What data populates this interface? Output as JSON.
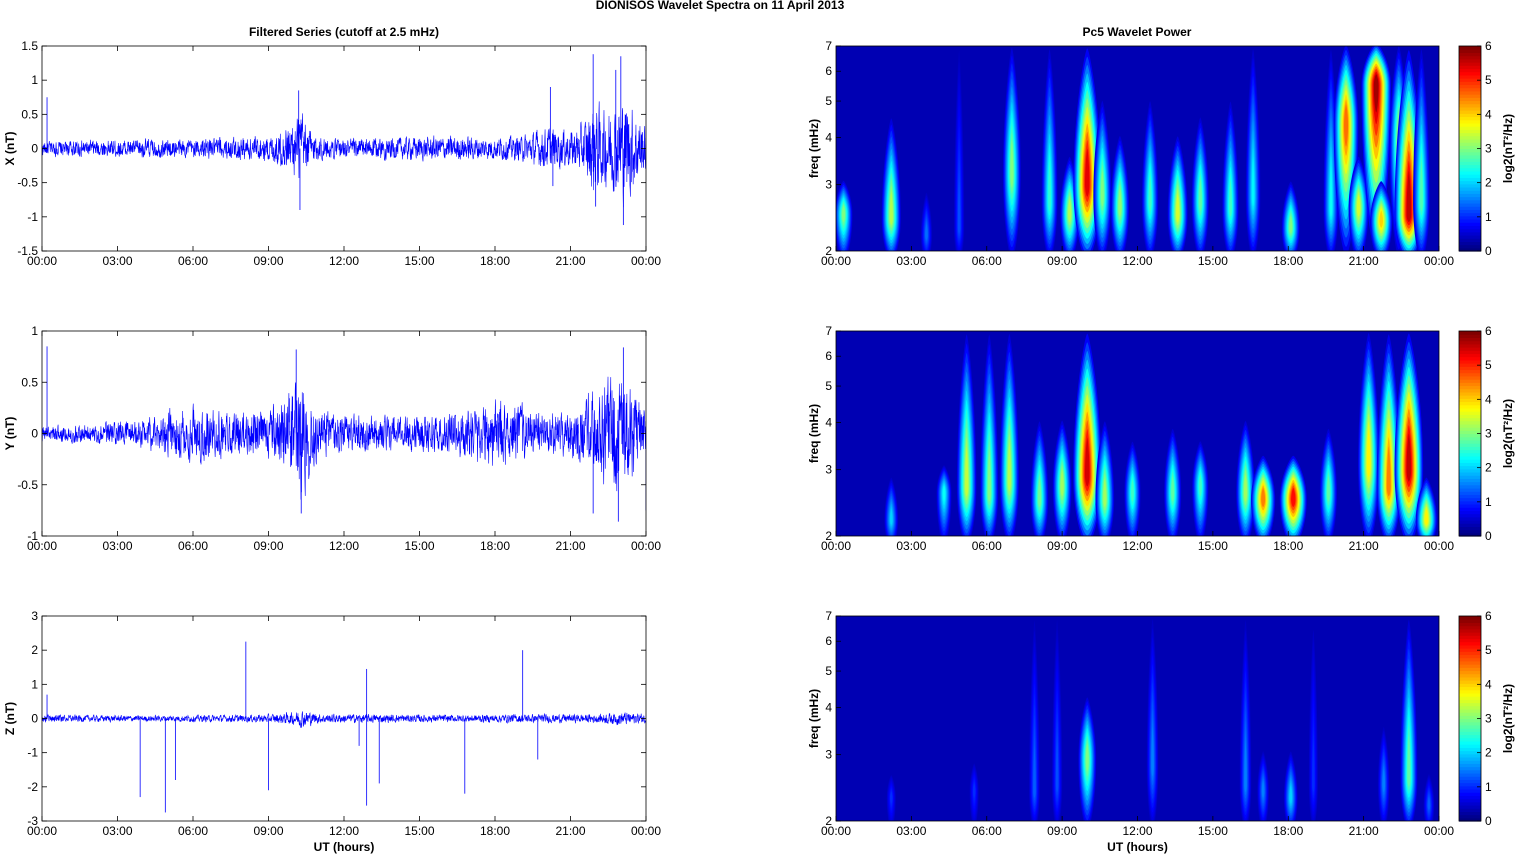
{
  "figure": {
    "title": "DIONISOS Wavelet Spectra on 11 April     2013",
    "left_column_title": "Filtered Series (cutoff at 2.5 mHz)",
    "right_column_title": "Pc5 Wavelet Power",
    "colors": {
      "trace": "#0000ff",
      "background": "#ffffff",
      "axes": "#000000"
    }
  },
  "chart_data": [
    {
      "type": "line",
      "component": "X",
      "ylabel": "X (nT)",
      "xlabel": "",
      "x_tick_labels": [
        "00:00",
        "03:00",
        "06:00",
        "09:00",
        "12:00",
        "15:00",
        "18:00",
        "21:00",
        "00:00"
      ],
      "xlim_hours": [
        0,
        24
      ],
      "ylim": [
        -1.5,
        1.5
      ],
      "y_ticks": [
        -1.5,
        -1,
        -0.5,
        0,
        0.5,
        1,
        1.5
      ],
      "y_tick_labels": [
        "-1.5",
        "-1",
        "-0.5",
        "0",
        "0.5",
        "1",
        "1.5"
      ],
      "grid": false,
      "envelope_hours": [
        0,
        2,
        4,
        6,
        7,
        8,
        9,
        9.5,
        10,
        10.3,
        10.6,
        11,
        12,
        14,
        16,
        18,
        19,
        19.8,
        20.2,
        21,
        21.5,
        21.9,
        22.3,
        22.8,
        23.2,
        23.6,
        24
      ],
      "envelope_amplitude": [
        0.12,
        0.14,
        0.15,
        0.15,
        0.18,
        0.2,
        0.22,
        0.3,
        0.45,
        0.6,
        0.35,
        0.2,
        0.16,
        0.18,
        0.2,
        0.18,
        0.2,
        0.3,
        0.35,
        0.3,
        0.4,
        0.8,
        0.6,
        0.7,
        0.9,
        0.6,
        0.4
      ],
      "spikes": [
        {
          "t_hours": 0.2,
          "value": 0.75
        },
        {
          "t_hours": 10.2,
          "value": 0.85
        },
        {
          "t_hours": 10.25,
          "value": -0.9
        },
        {
          "t_hours": 20.2,
          "value": 0.9
        },
        {
          "t_hours": 20.3,
          "value": -0.55
        },
        {
          "t_hours": 21.9,
          "value": 1.38
        },
        {
          "t_hours": 22.0,
          "value": -0.85
        },
        {
          "t_hours": 22.8,
          "value": 1.15
        },
        {
          "t_hours": 23.0,
          "value": 1.35
        },
        {
          "t_hours": 23.1,
          "value": -1.12
        }
      ]
    },
    {
      "type": "line",
      "component": "Y",
      "ylabel": "Y (nT)",
      "xlabel": "",
      "x_tick_labels": [
        "00:00",
        "03:00",
        "06:00",
        "09:00",
        "12:00",
        "15:00",
        "18:00",
        "21:00",
        "00:00"
      ],
      "xlim_hours": [
        0,
        24
      ],
      "ylim": [
        -1,
        1
      ],
      "y_ticks": [
        -1,
        -0.5,
        0,
        0.5,
        1
      ],
      "y_tick_labels": [
        "-1",
        "-0.5",
        "0",
        "0.5",
        "1"
      ],
      "grid": false,
      "envelope_hours": [
        0,
        2,
        4,
        5,
        6,
        7,
        8,
        9,
        9.5,
        10,
        10.3,
        10.6,
        11,
        12,
        14,
        16,
        17,
        18,
        19,
        20,
        21,
        22,
        22.5,
        23,
        24
      ],
      "envelope_amplitude": [
        0.08,
        0.1,
        0.15,
        0.25,
        0.3,
        0.25,
        0.22,
        0.25,
        0.35,
        0.5,
        0.75,
        0.45,
        0.25,
        0.2,
        0.18,
        0.2,
        0.3,
        0.35,
        0.3,
        0.22,
        0.25,
        0.45,
        0.55,
        0.6,
        0.3
      ],
      "spikes": [
        {
          "t_hours": 0.2,
          "value": 0.85
        },
        {
          "t_hours": 10.1,
          "value": 0.82
        },
        {
          "t_hours": 10.3,
          "value": -0.78
        },
        {
          "t_hours": 21.9,
          "value": -0.78
        },
        {
          "t_hours": 23.1,
          "value": 0.84
        },
        {
          "t_hours": 22.9,
          "value": -0.86
        },
        {
          "t_hours": 24.0,
          "value": -0.75
        }
      ]
    },
    {
      "type": "line",
      "component": "Z",
      "ylabel": "Z (nT)",
      "xlabel": "UT (hours)",
      "x_tick_labels": [
        "00:00",
        "03:00",
        "06:00",
        "09:00",
        "12:00",
        "15:00",
        "18:00",
        "21:00",
        "00:00"
      ],
      "xlim_hours": [
        0,
        24
      ],
      "ylim": [
        -3,
        3
      ],
      "y_ticks": [
        -3,
        -2,
        -1,
        0,
        1,
        2,
        3
      ],
      "y_tick_labels": [
        "-3",
        "-2",
        "-1",
        "0",
        "1",
        "2",
        "3"
      ],
      "grid": false,
      "envelope_hours": [
        0,
        4,
        8,
        9,
        10,
        10.3,
        11,
        13,
        16,
        19,
        22,
        23,
        24
      ],
      "envelope_amplitude": [
        0.12,
        0.1,
        0.12,
        0.14,
        0.2,
        0.3,
        0.15,
        0.14,
        0.12,
        0.14,
        0.14,
        0.22,
        0.15
      ],
      "spikes": [
        {
          "t_hours": 0.2,
          "value": 0.7
        },
        {
          "t_hours": 3.9,
          "value": -2.3
        },
        {
          "t_hours": 4.9,
          "value": -2.75
        },
        {
          "t_hours": 5.3,
          "value": -1.8
        },
        {
          "t_hours": 8.1,
          "value": 2.25
        },
        {
          "t_hours": 9.0,
          "value": -2.1
        },
        {
          "t_hours": 12.6,
          "value": -0.8
        },
        {
          "t_hours": 12.9,
          "value": 1.45
        },
        {
          "t_hours": 12.9,
          "value": -2.55
        },
        {
          "t_hours": 13.4,
          "value": -1.9
        },
        {
          "t_hours": 16.8,
          "value": -2.2
        },
        {
          "t_hours": 19.1,
          "value": 2.0
        },
        {
          "t_hours": 19.7,
          "value": -1.2
        }
      ]
    },
    {
      "type": "heatmap",
      "component": "X",
      "ylabel": "freq (mHz)",
      "xlabel": "",
      "x_tick_labels": [
        "00:00",
        "03:00",
        "06:00",
        "09:00",
        "12:00",
        "15:00",
        "18:00",
        "21:00",
        "00:00"
      ],
      "xlim_hours": [
        0,
        24
      ],
      "ylim_mhz": [
        2,
        7
      ],
      "y_scale": "log",
      "y_ticks": [
        2,
        3,
        4,
        5,
        6,
        7
      ],
      "y_tick_labels": [
        "2",
        "3",
        "4",
        "5",
        "6",
        "7"
      ],
      "colormap": "jet",
      "colorbar_label": "log2(nT²/Hz)",
      "colorbar_ticks": [
        0,
        1,
        2,
        3,
        4,
        5,
        6
      ],
      "colorbar_tick_labels": [
        "0",
        "1",
        "2",
        "3",
        "4",
        "5",
        "6"
      ],
      "clim": [
        0,
        6
      ],
      "blobs": [
        {
          "t_hours": 0.3,
          "f_mhz": 2.5,
          "power": 3.0,
          "reach_mhz": 3.0
        },
        {
          "t_hours": 2.2,
          "f_mhz": 2.45,
          "power": 3.3,
          "reach_mhz": 4.5
        },
        {
          "t_hours": 3.6,
          "f_mhz": 2.2,
          "power": 1.4,
          "reach_mhz": 2.8
        },
        {
          "t_hours": 4.9,
          "f_mhz": 2.3,
          "power": 1.2,
          "reach_mhz": 7
        },
        {
          "t_hours": 7.0,
          "f_mhz": 3.2,
          "power": 3.0,
          "reach_mhz": 7
        },
        {
          "t_hours": 8.5,
          "f_mhz": 2.7,
          "power": 2.5,
          "reach_mhz": 7
        },
        {
          "t_hours": 9.3,
          "f_mhz": 2.5,
          "power": 3.3,
          "reach_mhz": 3.5
        },
        {
          "t_hours": 10.0,
          "f_mhz": 3.0,
          "power": 5.4,
          "reach_mhz": 7
        },
        {
          "t_hours": 10.6,
          "f_mhz": 2.8,
          "power": 3.0,
          "reach_mhz": 5
        },
        {
          "t_hours": 11.3,
          "f_mhz": 2.6,
          "power": 3.1,
          "reach_mhz": 4
        },
        {
          "t_hours": 12.5,
          "f_mhz": 2.7,
          "power": 2.6,
          "reach_mhz": 5
        },
        {
          "t_hours": 13.6,
          "f_mhz": 2.5,
          "power": 3.5,
          "reach_mhz": 4
        },
        {
          "t_hours": 14.5,
          "f_mhz": 2.7,
          "power": 2.8,
          "reach_mhz": 4.5
        },
        {
          "t_hours": 15.7,
          "f_mhz": 2.6,
          "power": 2.6,
          "reach_mhz": 5
        },
        {
          "t_hours": 16.6,
          "f_mhz": 2.8,
          "power": 2.2,
          "reach_mhz": 7
        },
        {
          "t_hours": 18.1,
          "f_mhz": 2.3,
          "power": 3.0,
          "reach_mhz": 3
        },
        {
          "t_hours": 19.7,
          "f_mhz": 2.6,
          "power": 2.3,
          "reach_mhz": 7
        },
        {
          "t_hours": 20.3,
          "f_mhz": 4.3,
          "power": 4.6,
          "reach_mhz": 7
        },
        {
          "t_hours": 20.8,
          "f_mhz": 2.6,
          "power": 3.5,
          "reach_mhz": 3.5
        },
        {
          "t_hours": 21.5,
          "f_mhz": 5.5,
          "power": 5.8,
          "reach_mhz": 7
        },
        {
          "t_hours": 21.7,
          "f_mhz": 2.4,
          "power": 4.0,
          "reach_mhz": 3
        },
        {
          "t_hours": 22.4,
          "f_mhz": 3.8,
          "power": 3.2,
          "reach_mhz": 7
        },
        {
          "t_hours": 22.8,
          "f_mhz": 2.5,
          "power": 5.6,
          "reach_mhz": 7
        },
        {
          "t_hours": 23.3,
          "f_mhz": 2.7,
          "power": 2.7,
          "reach_mhz": 7
        }
      ]
    },
    {
      "type": "heatmap",
      "component": "Y",
      "ylabel": "freq (mHz)",
      "xlabel": "",
      "x_tick_labels": [
        "00:00",
        "03:00",
        "06:00",
        "09:00",
        "12:00",
        "15:00",
        "18:00",
        "21:00",
        "00:00"
      ],
      "xlim_hours": [
        0,
        24
      ],
      "ylim_mhz": [
        2,
        7
      ],
      "y_scale": "log",
      "y_ticks": [
        2,
        3,
        4,
        5,
        6,
        7
      ],
      "y_tick_labels": [
        "2",
        "3",
        "4",
        "5",
        "6",
        "7"
      ],
      "colormap": "jet",
      "colorbar_label": "log2(nT²/Hz)",
      "colorbar_ticks": [
        0,
        1,
        2,
        3,
        4,
        5,
        6
      ],
      "colorbar_tick_labels": [
        "0",
        "1",
        "2",
        "3",
        "4",
        "5",
        "6"
      ],
      "clim": [
        0,
        6
      ],
      "blobs": [
        {
          "t_hours": 2.2,
          "f_mhz": 2.2,
          "power": 2.0,
          "reach_mhz": 2.8
        },
        {
          "t_hours": 4.3,
          "f_mhz": 2.6,
          "power": 2.3,
          "reach_mhz": 3
        },
        {
          "t_hours": 5.2,
          "f_mhz": 2.7,
          "power": 3.4,
          "reach_mhz": 7
        },
        {
          "t_hours": 6.1,
          "f_mhz": 2.6,
          "power": 3.0,
          "reach_mhz": 7
        },
        {
          "t_hours": 6.9,
          "f_mhz": 2.8,
          "power": 3.3,
          "reach_mhz": 7
        },
        {
          "t_hours": 8.1,
          "f_mhz": 2.5,
          "power": 2.9,
          "reach_mhz": 4
        },
        {
          "t_hours": 9.0,
          "f_mhz": 2.7,
          "power": 3.2,
          "reach_mhz": 4
        },
        {
          "t_hours": 10.0,
          "f_mhz": 2.9,
          "power": 5.5,
          "reach_mhz": 7
        },
        {
          "t_hours": 10.7,
          "f_mhz": 2.5,
          "power": 3.2,
          "reach_mhz": 4
        },
        {
          "t_hours": 11.8,
          "f_mhz": 2.6,
          "power": 2.6,
          "reach_mhz": 3.5
        },
        {
          "t_hours": 13.4,
          "f_mhz": 2.6,
          "power": 2.8,
          "reach_mhz": 3.8
        },
        {
          "t_hours": 14.5,
          "f_mhz": 2.7,
          "power": 2.6,
          "reach_mhz": 3.5
        },
        {
          "t_hours": 16.3,
          "f_mhz": 2.6,
          "power": 3.2,
          "reach_mhz": 4
        },
        {
          "t_hours": 17.0,
          "f_mhz": 2.5,
          "power": 4.5,
          "reach_mhz": 3.2
        },
        {
          "t_hours": 18.2,
          "f_mhz": 2.5,
          "power": 5.2,
          "reach_mhz": 3.2
        },
        {
          "t_hours": 19.6,
          "f_mhz": 2.6,
          "power": 2.8,
          "reach_mhz": 3.8
        },
        {
          "t_hours": 21.2,
          "f_mhz": 3.1,
          "power": 3.8,
          "reach_mhz": 7
        },
        {
          "t_hours": 22.0,
          "f_mhz": 2.7,
          "power": 4.5,
          "reach_mhz": 7
        },
        {
          "t_hours": 22.8,
          "f_mhz": 3.0,
          "power": 5.6,
          "reach_mhz": 7
        },
        {
          "t_hours": 23.5,
          "f_mhz": 2.2,
          "power": 3.8,
          "reach_mhz": 2.8
        }
      ]
    },
    {
      "type": "heatmap",
      "component": "Z",
      "ylabel": "freq (mHz)",
      "xlabel": "UT (hours)",
      "x_tick_labels": [
        "00:00",
        "03:00",
        "06:00",
        "09:00",
        "12:00",
        "15:00",
        "18:00",
        "21:00",
        "00:00"
      ],
      "xlim_hours": [
        0,
        24
      ],
      "ylim_mhz": [
        2,
        7
      ],
      "y_scale": "log",
      "y_ticks": [
        2,
        3,
        4,
        5,
        6,
        7
      ],
      "y_tick_labels": [
        "2",
        "3",
        "4",
        "5",
        "6",
        "7"
      ],
      "colormap": "jet",
      "colorbar_label": "log2(nT²/Hz)",
      "colorbar_ticks": [
        0,
        1,
        2,
        3,
        4,
        5,
        6
      ],
      "colorbar_tick_labels": [
        "0",
        "1",
        "2",
        "3",
        "4",
        "5",
        "6"
      ],
      "clim": [
        0,
        6
      ],
      "blobs": [
        {
          "t_hours": 2.2,
          "f_mhz": 2.3,
          "power": 1.0,
          "reach_mhz": 2.6
        },
        {
          "t_hours": 5.5,
          "f_mhz": 2.4,
          "power": 1.0,
          "reach_mhz": 2.8
        },
        {
          "t_hours": 7.9,
          "f_mhz": 2.4,
          "power": 1.3,
          "reach_mhz": 7
        },
        {
          "t_hours": 8.8,
          "f_mhz": 2.5,
          "power": 1.2,
          "reach_mhz": 7
        },
        {
          "t_hours": 10.0,
          "f_mhz": 2.9,
          "power": 3.0,
          "reach_mhz": 4.2
        },
        {
          "t_hours": 12.6,
          "f_mhz": 2.8,
          "power": 1.5,
          "reach_mhz": 7
        },
        {
          "t_hours": 16.3,
          "f_mhz": 2.5,
          "power": 1.5,
          "reach_mhz": 7
        },
        {
          "t_hours": 17.0,
          "f_mhz": 2.4,
          "power": 1.5,
          "reach_mhz": 3
        },
        {
          "t_hours": 18.1,
          "f_mhz": 2.3,
          "power": 2.0,
          "reach_mhz": 3
        },
        {
          "t_hours": 19.0,
          "f_mhz": 2.5,
          "power": 1.0,
          "reach_mhz": 7
        },
        {
          "t_hours": 21.8,
          "f_mhz": 2.5,
          "power": 1.5,
          "reach_mhz": 3.5
        },
        {
          "t_hours": 22.8,
          "f_mhz": 2.6,
          "power": 2.8,
          "reach_mhz": 7
        },
        {
          "t_hours": 23.6,
          "f_mhz": 2.2,
          "power": 1.3,
          "reach_mhz": 2.6
        }
      ]
    }
  ]
}
